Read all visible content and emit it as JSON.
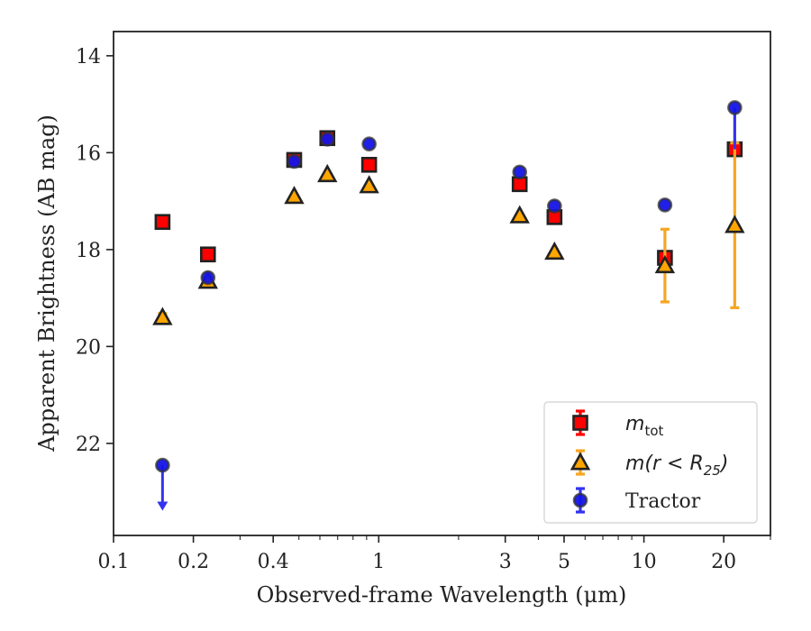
{
  "chart_data": {
    "type": "scatter",
    "xlabel": "Observed-frame Wavelength (μm)",
    "ylabel": "Apparent Brightness (AB mag)",
    "x_scale": "log",
    "xlim": [
      0.1,
      30
    ],
    "ylim": [
      23.9,
      13.5
    ],
    "y_inverted": true,
    "x_ticks": [
      {
        "value": 0.1,
        "label": "0.1"
      },
      {
        "value": 0.2,
        "label": "0.2"
      },
      {
        "value": 0.4,
        "label": "0.4"
      },
      {
        "value": 1,
        "label": "1"
      },
      {
        "value": 3,
        "label": "3"
      },
      {
        "value": 5,
        "label": "5"
      },
      {
        "value": 10,
        "label": "10"
      },
      {
        "value": 20,
        "label": "20"
      }
    ],
    "y_ticks": [
      {
        "value": 14,
        "label": "14"
      },
      {
        "value": 16,
        "label": "16"
      },
      {
        "value": 18,
        "label": "18"
      },
      {
        "value": 20,
        "label": "20"
      },
      {
        "value": 22,
        "label": "22"
      }
    ],
    "grid": false,
    "legend_position": "bottom-right",
    "series": [
      {
        "name": "m_tot",
        "legend_main": "m",
        "legend_sub": "tot",
        "marker": "square",
        "color": "#ff0000",
        "errcolor": "#ff0000",
        "points": [
          {
            "x": 0.153,
            "y": 17.43,
            "err": 0.0
          },
          {
            "x": 0.227,
            "y": 18.1,
            "err": 0.0
          },
          {
            "x": 0.48,
            "y": 16.15,
            "err": 0.0
          },
          {
            "x": 0.64,
            "y": 15.7,
            "err": 0.0
          },
          {
            "x": 0.92,
            "y": 16.25,
            "err": 0.0
          },
          {
            "x": 3.4,
            "y": 16.65,
            "err": 0.0
          },
          {
            "x": 4.6,
            "y": 17.33,
            "err": 0.0
          },
          {
            "x": 12.0,
            "y": 18.17,
            "err": 0.0
          },
          {
            "x": 22.0,
            "y": 15.93,
            "err": 0.0
          }
        ]
      },
      {
        "name": "m(r < R25)",
        "legend_main": "m(r < R",
        "legend_sub": "25",
        "legend_tail": ")",
        "marker": "triangle",
        "color": "#ffa500",
        "errcolor": "#f5a623",
        "points": [
          {
            "x": 0.153,
            "y": 19.4,
            "err": 0.08
          },
          {
            "x": 0.227,
            "y": 18.65,
            "err": 0.0
          },
          {
            "x": 0.48,
            "y": 16.9,
            "err": 0.0
          },
          {
            "x": 0.64,
            "y": 16.45,
            "err": 0.0
          },
          {
            "x": 0.92,
            "y": 16.68,
            "err": 0.0
          },
          {
            "x": 3.4,
            "y": 17.3,
            "err": 0.0
          },
          {
            "x": 4.6,
            "y": 18.05,
            "err": 0.0
          },
          {
            "x": 12.0,
            "y": 18.33,
            "err": 0.75
          },
          {
            "x": 22.0,
            "y": 17.5,
            "err": 1.7
          }
        ]
      },
      {
        "name": "Tractor",
        "legend_main": "Tractor",
        "marker": "circle",
        "color": "#1414e6",
        "errcolor": "#3333ee",
        "points": [
          {
            "x": 0.153,
            "y": 22.45,
            "err": 0.0,
            "upper_limit": true,
            "arrow_to": 23.35
          },
          {
            "x": 0.227,
            "y": 18.58,
            "err": 0.0
          },
          {
            "x": 0.48,
            "y": 16.18,
            "err": 0.0
          },
          {
            "x": 0.64,
            "y": 15.72,
            "err": 0.0
          },
          {
            "x": 0.92,
            "y": 15.82,
            "err": 0.0
          },
          {
            "x": 3.4,
            "y": 16.4,
            "err": 0.0
          },
          {
            "x": 4.6,
            "y": 17.1,
            "err": 0.0
          },
          {
            "x": 12.0,
            "y": 17.08,
            "err": 0.0
          },
          {
            "x": 22.0,
            "y": 15.07,
            "err": 0.0,
            "err_low": 0.86
          }
        ]
      }
    ]
  }
}
